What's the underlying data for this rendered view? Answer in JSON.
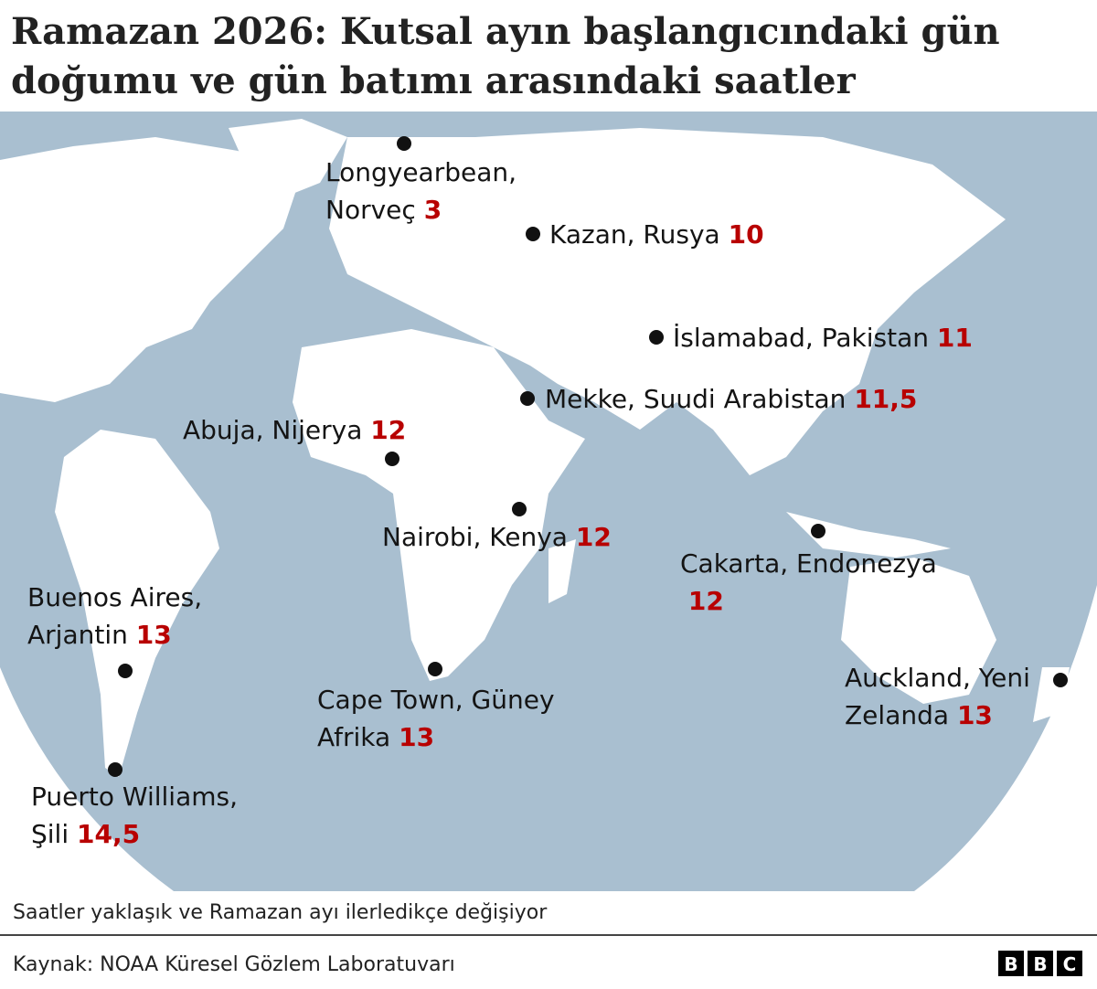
{
  "title_lines": [
    "Ramazan 2026: Kutsal ayın başlangıcındaki gün",
    "doğumu ve gün batımı arasındaki saatler"
  ],
  "places": [
    {
      "lines": [
        "Longyearbean,",
        "Norveç"
      ],
      "value": "3"
    },
    {
      "lines": [
        "Kazan, Rusya"
      ],
      "value": "10"
    },
    {
      "lines": [
        "İslamabad, Pakistan"
      ],
      "value": "11"
    },
    {
      "lines": [
        "Mekke, Suudi Arabistan"
      ],
      "value": "11,5"
    },
    {
      "lines": [
        "Abuja, Nijerya"
      ],
      "value": "12"
    },
    {
      "lines": [
        "Nairobi, Kenya"
      ],
      "value": "12"
    },
    {
      "lines": [
        "Cakarta, Endonezya",
        ""
      ],
      "value": "12"
    },
    {
      "lines": [
        "Buenos Aires,",
        "Arjantin"
      ],
      "value": "13"
    },
    {
      "lines": [
        "Cape Town, Güney",
        "Afrika"
      ],
      "value": "13"
    },
    {
      "lines": [
        "Auckland, Yeni",
        "Zelanda"
      ],
      "value": "13"
    },
    {
      "lines": [
        "Puerto Williams,",
        "Şili"
      ],
      "value": "14,5"
    }
  ],
  "note": "Saatler yaklaşık ve Ramazan ayı ilerledikçe değişiyor",
  "source": "Kaynak: NOAA Küresel Gözlem Laboratuvarı",
  "logo": [
    "B",
    "B",
    "C"
  ]
}
